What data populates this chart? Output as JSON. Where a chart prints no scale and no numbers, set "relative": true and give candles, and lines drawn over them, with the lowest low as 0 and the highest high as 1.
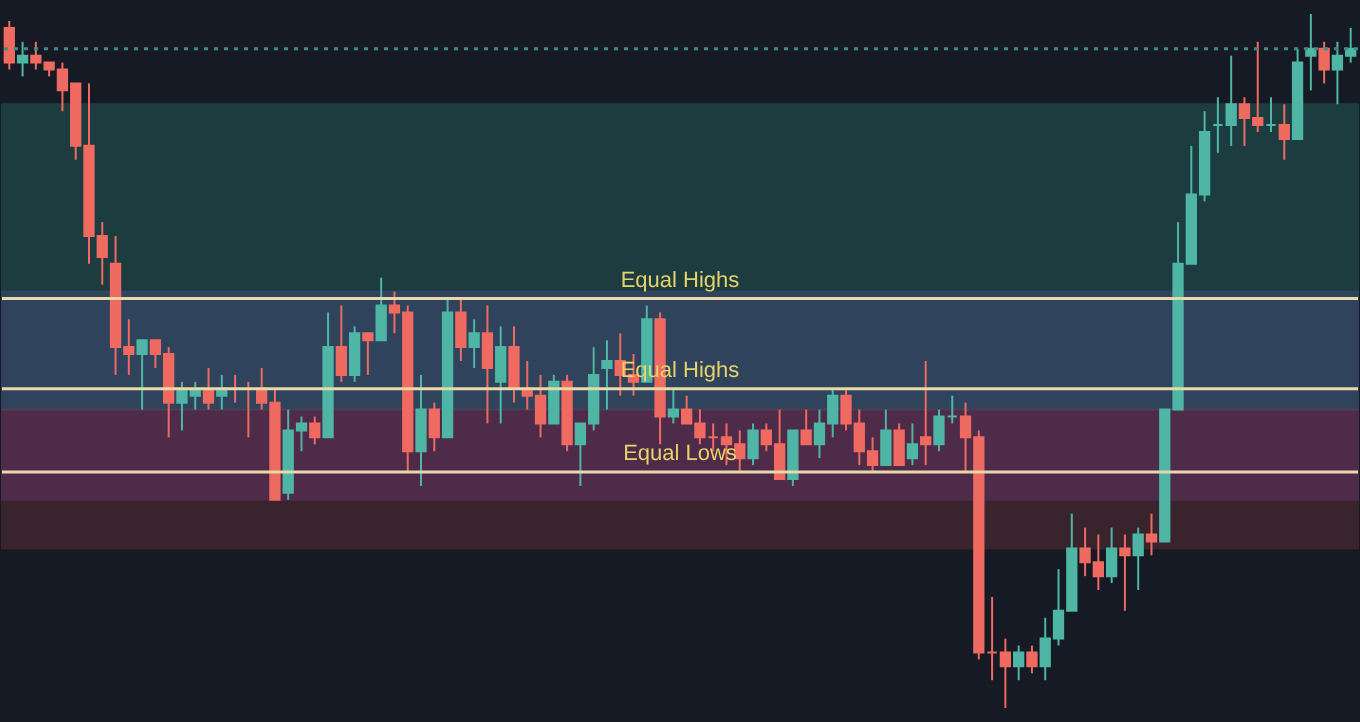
{
  "chart_data": {
    "type": "candlestick",
    "relative": true,
    "categories": [
      null,
      null,
      null,
      null,
      null,
      null,
      null,
      null,
      null,
      null,
      null,
      null,
      null,
      null,
      null,
      null,
      null,
      null,
      null,
      null,
      null,
      null,
      null,
      null,
      null,
      null,
      null,
      null,
      null,
      null,
      null,
      null,
      null,
      null,
      null,
      null,
      null,
      null,
      null,
      null,
      null,
      null,
      null,
      null,
      null,
      null,
      null,
      null,
      null,
      null,
      null,
      null,
      null,
      null,
      null,
      null,
      null,
      null,
      null,
      null,
      null,
      null,
      null,
      null,
      null,
      null,
      null,
      null,
      null,
      null,
      null,
      null,
      null,
      null,
      null,
      null,
      null,
      null,
      null,
      null,
      null,
      null,
      null,
      null,
      null,
      null,
      null,
      null,
      null,
      null,
      null,
      null,
      null,
      null,
      null,
      null,
      null,
      null,
      null,
      null,
      null,
      null
    ],
    "ohlc": [
      [
        0.98,
        0.99,
        0.92,
        0.93
      ],
      [
        0.93,
        0.96,
        0.91,
        0.94
      ],
      [
        0.94,
        0.96,
        0.92,
        0.93
      ],
      [
        0.93,
        0.93,
        0.91,
        0.92
      ],
      [
        0.92,
        0.93,
        0.86,
        0.89
      ],
      [
        0.9,
        0.9,
        0.79,
        0.81
      ],
      [
        0.81,
        0.9,
        0.64,
        0.68
      ],
      [
        0.68,
        0.7,
        0.61,
        0.65
      ],
      [
        0.64,
        0.68,
        0.48,
        0.52
      ],
      [
        0.52,
        0.56,
        0.48,
        0.51
      ],
      [
        0.51,
        0.53,
        0.43,
        0.53
      ],
      [
        0.53,
        0.53,
        0.49,
        0.51
      ],
      [
        0.51,
        0.52,
        0.39,
        0.44
      ],
      [
        0.44,
        0.47,
        0.4,
        0.46
      ],
      [
        0.45,
        0.47,
        0.43,
        0.46
      ],
      [
        0.46,
        0.49,
        0.43,
        0.44
      ],
      [
        0.45,
        0.48,
        0.43,
        0.46
      ],
      [
        0.46,
        0.48,
        0.44,
        0.46
      ],
      [
        0.46,
        0.47,
        0.39,
        0.46
      ],
      [
        0.46,
        0.49,
        0.43,
        0.44
      ],
      [
        0.44,
        0.46,
        0.3,
        0.3
      ],
      [
        0.31,
        0.43,
        0.3,
        0.4
      ],
      [
        0.4,
        0.42,
        0.37,
        0.41
      ],
      [
        0.41,
        0.42,
        0.38,
        0.39
      ],
      [
        0.39,
        0.57,
        0.39,
        0.52
      ],
      [
        0.52,
        0.58,
        0.47,
        0.48
      ],
      [
        0.48,
        0.55,
        0.47,
        0.54
      ],
      [
        0.54,
        0.54,
        0.48,
        0.53
      ],
      [
        0.53,
        0.62,
        0.53,
        0.58
      ],
      [
        0.58,
        0.6,
        0.54,
        0.57
      ],
      [
        0.57,
        0.58,
        0.34,
        0.37
      ],
      [
        0.37,
        0.48,
        0.32,
        0.43
      ],
      [
        0.43,
        0.44,
        0.37,
        0.39
      ],
      [
        0.39,
        0.59,
        0.39,
        0.57
      ],
      [
        0.57,
        0.59,
        0.5,
        0.52
      ],
      [
        0.52,
        0.56,
        0.49,
        0.54
      ],
      [
        0.54,
        0.58,
        0.41,
        0.49
      ],
      [
        0.47,
        0.55,
        0.41,
        0.52
      ],
      [
        0.52,
        0.55,
        0.44,
        0.46
      ],
      [
        0.46,
        0.5,
        0.43,
        0.45
      ],
      [
        0.45,
        0.48,
        0.39,
        0.41
      ],
      [
        0.41,
        0.48,
        0.41,
        0.47
      ],
      [
        0.47,
        0.48,
        0.37,
        0.38
      ],
      [
        0.38,
        0.41,
        0.32,
        0.41
      ],
      [
        0.41,
        0.52,
        0.4,
        0.48
      ],
      [
        0.49,
        0.53,
        0.43,
        0.5
      ],
      [
        0.5,
        0.54,
        0.45,
        0.48
      ],
      [
        0.48,
        0.51,
        0.45,
        0.47
      ],
      [
        0.47,
        0.58,
        0.47,
        0.56
      ],
      [
        0.56,
        0.57,
        0.38,
        0.42
      ],
      [
        0.42,
        0.46,
        0.41,
        0.43
      ],
      [
        0.43,
        0.45,
        0.41,
        0.41
      ],
      [
        0.41,
        0.43,
        0.38,
        0.39
      ],
      [
        0.39,
        0.41,
        0.37,
        0.39
      ],
      [
        0.39,
        0.41,
        0.35,
        0.38
      ],
      [
        0.38,
        0.4,
        0.34,
        0.36
      ],
      [
        0.36,
        0.41,
        0.35,
        0.4
      ],
      [
        0.4,
        0.41,
        0.37,
        0.38
      ],
      [
        0.38,
        0.43,
        0.33,
        0.33
      ],
      [
        0.33,
        0.4,
        0.32,
        0.4
      ],
      [
        0.4,
        0.43,
        0.38,
        0.38
      ],
      [
        0.38,
        0.43,
        0.36,
        0.41
      ],
      [
        0.41,
        0.46,
        0.39,
        0.45
      ],
      [
        0.45,
        0.46,
        0.4,
        0.41
      ],
      [
        0.41,
        0.43,
        0.35,
        0.37
      ],
      [
        0.37,
        0.39,
        0.34,
        0.35
      ],
      [
        0.35,
        0.43,
        0.35,
        0.4
      ],
      [
        0.4,
        0.41,
        0.35,
        0.35
      ],
      [
        0.36,
        0.41,
        0.35,
        0.38
      ],
      [
        0.39,
        0.5,
        0.35,
        0.38
      ],
      [
        0.38,
        0.43,
        0.37,
        0.42
      ],
      [
        0.42,
        0.45,
        0.41,
        0.42
      ],
      [
        0.42,
        0.44,
        0.34,
        0.39
      ],
      [
        0.39,
        0.4,
        0.07,
        0.08
      ],
      [
        0.08,
        0.16,
        0.04,
        0.08
      ],
      [
        0.08,
        0.1,
        0,
        0.06
      ],
      [
        0.06,
        0.09,
        0.04,
        0.08
      ],
      [
        0.08,
        0.09,
        0.05,
        0.06
      ],
      [
        0.06,
        0.13,
        0.04,
        0.1
      ],
      [
        0.1,
        0.2,
        0.09,
        0.14
      ],
      [
        0.14,
        0.28,
        0.14,
        0.23
      ],
      [
        0.23,
        0.26,
        0.19,
        0.21
      ],
      [
        0.21,
        0.25,
        0.17,
        0.19
      ],
      [
        0.19,
        0.26,
        0.18,
        0.23
      ],
      [
        0.23,
        0.25,
        0.14,
        0.22
      ],
      [
        0.22,
        0.26,
        0.17,
        0.25
      ],
      [
        0.25,
        0.28,
        0.22,
        0.24
      ],
      [
        0.24,
        0.43,
        0.24,
        0.43
      ],
      [
        0.43,
        0.7,
        0.43,
        0.64
      ],
      [
        0.64,
        0.81,
        0.64,
        0.74
      ],
      [
        0.74,
        0.86,
        0.73,
        0.83
      ],
      [
        0.84,
        0.88,
        0.8,
        0.84
      ],
      [
        0.84,
        0.94,
        0.81,
        0.87
      ],
      [
        0.87,
        0.88,
        0.81,
        0.85
      ],
      [
        0.85,
        0.96,
        0.83,
        0.84
      ],
      [
        0.84,
        0.88,
        0.83,
        0.84
      ],
      [
        0.84,
        0.87,
        0.79,
        0.82
      ],
      [
        0.82,
        0.95,
        0.82,
        0.93
      ],
      [
        0.94,
        1,
        0.89,
        0.95
      ],
      [
        0.95,
        0.96,
        0.9,
        0.92
      ],
      [
        0.92,
        0.96,
        0.87,
        0.94
      ],
      [
        0.94,
        0.98,
        0.93,
        0.95
      ]
    ],
    "colors": [
      "#ef6a60",
      "#4fb5a5",
      "#ef6a60",
      "#ef6a60",
      "#ef6a60",
      "#ef6a60",
      "#ef6a60",
      "#ef6a60",
      "#ef6a60",
      "#ef6a60",
      "#4fb5a5",
      "#ef6a60",
      "#ef6a60",
      "#4fb5a5",
      "#4fb5a5",
      "#ef6a60",
      "#4fb5a5",
      "#ef6a60",
      "#ef6a60",
      "#ef6a60",
      "#ef6a60",
      "#4fb5a5",
      "#4fb5a5",
      "#ef6a60",
      "#4fb5a5",
      "#ef6a60",
      "#4fb5a5",
      "#ef6a60",
      "#4fb5a5",
      "#ef6a60",
      "#ef6a60",
      "#4fb5a5",
      "#ef6a60",
      "#4fb5a5",
      "#ef6a60",
      "#4fb5a5",
      "#ef6a60",
      "#4fb5a5",
      "#ef6a60",
      "#ef6a60",
      "#ef6a60",
      "#4fb5a5",
      "#ef6a60",
      "#4fb5a5",
      "#4fb5a5",
      "#4fb5a5",
      "#ef6a60",
      "#ef6a60",
      "#4fb5a5",
      "#ef6a60",
      "#4fb5a5",
      "#ef6a60",
      "#ef6a60",
      "#ef6a60",
      "#ef6a60",
      "#ef6a60",
      "#4fb5a5",
      "#ef6a60",
      "#ef6a60",
      "#4fb5a5",
      "#ef6a60",
      "#4fb5a5",
      "#4fb5a5",
      "#ef6a60",
      "#ef6a60",
      "#ef6a60",
      "#4fb5a5",
      "#ef6a60",
      "#4fb5a5",
      "#ef6a60",
      "#4fb5a5",
      "#4fb5a5",
      "#ef6a60",
      "#ef6a60",
      "#ef6a60",
      "#ef6a60",
      "#4fb5a5",
      "#ef6a60",
      "#4fb5a5",
      "#4fb5a5",
      "#4fb5a5",
      "#ef6a60",
      "#ef6a60",
      "#4fb5a5",
      "#ef6a60",
      "#4fb5a5",
      "#ef6a60",
      "#4fb5a5",
      "#4fb5a5",
      "#4fb5a5",
      "#4fb5a5",
      "#4fb5a5",
      "#4fb5a5",
      "#ef6a60",
      "#ef6a60",
      "#4fb5a5",
      "#ef6a60",
      "#4fb5a5",
      "#4fb5a5",
      "#ef6a60",
      "#4fb5a5",
      "#4fb5a5"
    ],
    "bands": [
      {
        "axis": "y",
        "from": 0.3,
        "to": 0.6,
        "color": "#7a3fb0"
      },
      {
        "axis": "y",
        "from": 0.43,
        "to": 0.87,
        "color": "#2a8a7e"
      },
      {
        "axis": "y",
        "from": 0.23,
        "to": 0.43,
        "color": "#8a3a3e"
      }
    ],
    "ref_lines": [
      {
        "axis": "y",
        "value": 0.59,
        "label": "Equal Highs",
        "color": "#e8d8a8",
        "line_style": "solid"
      },
      {
        "axis": "y",
        "value": 0.46,
        "label": "Equal Highs",
        "color": "#e8d8a8",
        "line_style": "solid"
      },
      {
        "axis": "y",
        "value": 0.34,
        "label": "Equal Lows",
        "color": "#e8d8a8",
        "line_style": "solid"
      },
      {
        "axis": "y",
        "value": 0.95,
        "color": "#3d8a8a",
        "line_style": "dotted"
      }
    ]
  }
}
